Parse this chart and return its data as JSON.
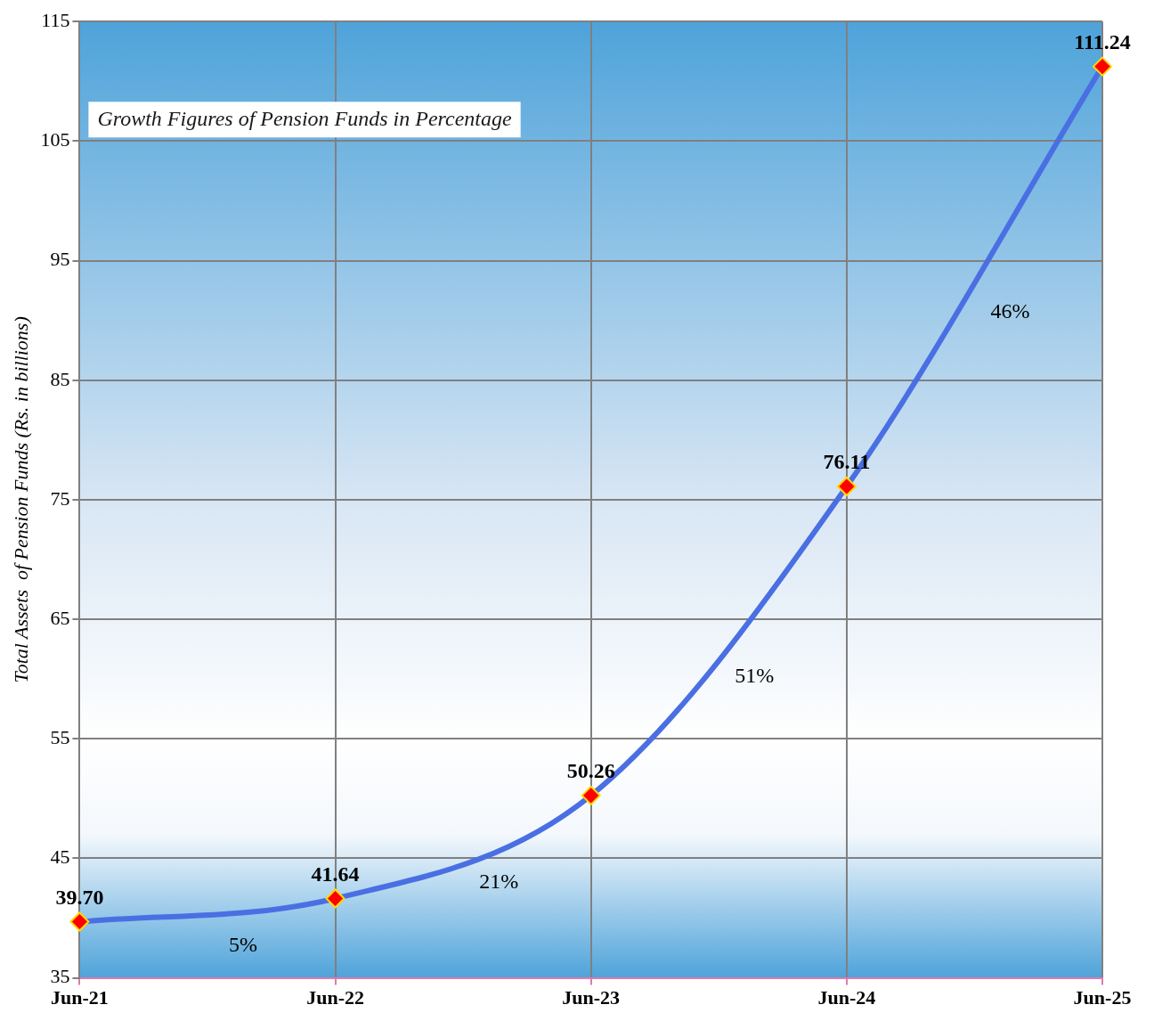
{
  "chart_data": {
    "type": "line",
    "title": "Growth Figures of Pension Funds in Percentage",
    "ylabel": "Total Assets  of Pension Funds (Rs. in billions)",
    "categories": [
      "Jun-21",
      "Jun-22",
      "Jun-23",
      "Jun-24",
      "Jun-25"
    ],
    "series": [
      {
        "color": "#4a6fe3",
        "values": [
          39.7,
          41.64,
          50.26,
          76.11,
          111.24
        ]
      }
    ],
    "value_labels": [
      "39.70",
      "41.64",
      "50.26",
      "76.11",
      "111.24"
    ],
    "ylim": [
      35,
      115
    ],
    "yticks": [
      35,
      45,
      55,
      65,
      75,
      85,
      95,
      105,
      115
    ],
    "grid": true,
    "legend": false,
    "marker": "diamond",
    "annotations": [
      "5%",
      "21%",
      "51%",
      "46%"
    ]
  }
}
